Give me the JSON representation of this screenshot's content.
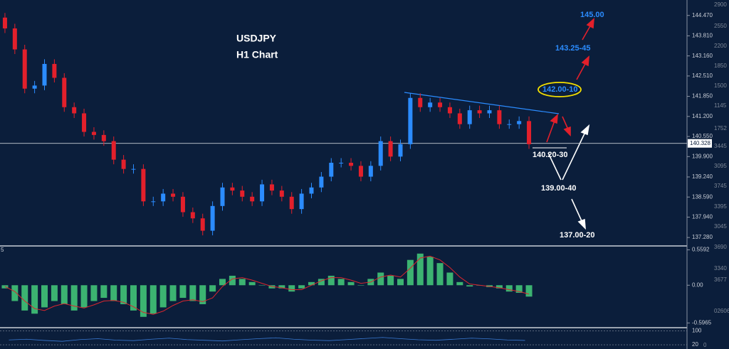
{
  "chart_data": {
    "type": "candlestick",
    "title": "USDJPY",
    "subtitle": "H1 Chart",
    "ylim": [
      137.03,
      144.97
    ],
    "yticks": [
      {
        "value": 144.47,
        "label": "144.470"
      },
      {
        "value": 143.81,
        "label": "143.810"
      },
      {
        "value": 143.16,
        "label": "143.160"
      },
      {
        "value": 142.51,
        "label": "142.510"
      },
      {
        "value": 141.85,
        "label": "141.850"
      },
      {
        "value": 141.2,
        "label": "141.200"
      },
      {
        "value": 140.55,
        "label": "140.550"
      },
      {
        "value": 139.9,
        "label": "139.900"
      },
      {
        "value": 139.24,
        "label": "139.240"
      },
      {
        "value": 138.59,
        "label": "138.590"
      },
      {
        "value": 137.94,
        "label": "137.940"
      },
      {
        "value": 137.28,
        "label": "137.280"
      }
    ],
    "current_price": {
      "value": 140.328,
      "label": "140.328"
    },
    "up_color": "#2b8cff",
    "down_color": "#e3202b",
    "open": [
      144.4,
      144.05,
      143.37,
      142.1,
      142.2,
      142.9,
      142.45,
      141.5,
      141.3,
      140.7,
      140.6,
      140.4,
      139.8,
      139.5,
      139.5,
      138.45,
      138.45,
      138.7,
      138.6,
      138.1,
      137.9,
      137.5,
      138.3,
      138.9,
      138.8,
      138.6,
      138.45,
      139.0,
      138.8,
      138.6,
      138.2,
      138.7,
      138.9,
      139.25,
      139.7,
      139.7,
      139.6,
      139.25,
      139.6,
      140.4,
      139.9,
      140.3,
      141.8,
      141.5,
      141.65,
      141.5,
      141.3,
      140.95,
      141.4,
      141.3,
      141.4,
      140.95,
      140.95,
      141.05
    ],
    "high": [
      144.55,
      144.2,
      143.52,
      142.35,
      143.05,
      143.05,
      142.6,
      141.65,
      141.45,
      140.85,
      140.75,
      140.55,
      139.95,
      139.65,
      139.65,
      138.6,
      138.85,
      138.85,
      138.75,
      138.25,
      138.05,
      138.45,
      139.05,
      139.05,
      138.95,
      138.75,
      139.15,
      139.15,
      138.95,
      138.75,
      138.85,
      139.05,
      139.4,
      139.85,
      139.85,
      139.85,
      139.75,
      139.75,
      140.55,
      140.55,
      140.45,
      141.95,
      141.95,
      141.8,
      141.8,
      141.65,
      141.45,
      141.55,
      141.55,
      141.55,
      141.55,
      141.1,
      141.2,
      141.2
    ],
    "low": [
      143.9,
      143.22,
      141.95,
      141.95,
      142.05,
      142.3,
      141.35,
      141.15,
      140.55,
      140.45,
      140.25,
      139.65,
      139.35,
      139.35,
      138.3,
      138.3,
      138.3,
      138.45,
      137.95,
      137.75,
      137.35,
      137.35,
      138.15,
      138.65,
      138.45,
      138.3,
      138.3,
      138.65,
      138.45,
      138.05,
      138.05,
      138.55,
      138.75,
      139.1,
      139.55,
      139.45,
      139.1,
      139.1,
      139.45,
      139.75,
      139.75,
      140.15,
      141.35,
      141.35,
      141.35,
      141.15,
      140.8,
      140.8,
      141.15,
      141.15,
      140.8,
      140.8,
      140.8,
      140.15
    ],
    "close": [
      144.05,
      143.37,
      142.1,
      142.2,
      142.9,
      142.45,
      141.5,
      141.3,
      140.7,
      140.6,
      140.4,
      139.8,
      139.5,
      139.5,
      138.45,
      138.45,
      138.7,
      138.6,
      138.1,
      137.9,
      137.5,
      138.3,
      138.9,
      138.8,
      138.6,
      138.45,
      139.0,
      138.8,
      138.6,
      138.2,
      138.7,
      138.9,
      139.25,
      139.7,
      139.7,
      139.6,
      139.25,
      139.6,
      140.4,
      139.9,
      140.3,
      141.8,
      141.5,
      141.65,
      141.5,
      141.3,
      140.95,
      141.4,
      141.3,
      141.4,
      140.95,
      140.95,
      141.05,
      140.3
    ],
    "annotations": [
      "145.00",
      "143.25-45",
      "142.00-10",
      "140.20-30",
      "139.00-40",
      "137.00-20"
    ],
    "right_axis_overlay": [
      "2900",
      "2550",
      "2200",
      "1850",
      "1500",
      "1145",
      "1752",
      "3445",
      "3095",
      "3745",
      "3395",
      "3045",
      "3690"
    ],
    "macd": {
      "label": "5",
      "ylim": [
        -0.66,
        0.61
      ],
      "yticks": [
        0.5592,
        {
          "value": 0,
          "label": "0.00"
        },
        -0.5965
      ],
      "overlay": [
        "3340",
        "3677",
        "02606"
      ],
      "histogram_color": "#3cb371",
      "signal_color": "#d9262e",
      "histogram": [
        -0.05,
        -0.25,
        -0.4,
        -0.45,
        -0.35,
        -0.25,
        -0.3,
        -0.4,
        -0.35,
        -0.25,
        -0.2,
        -0.25,
        -0.3,
        -0.4,
        -0.5,
        -0.45,
        -0.35,
        -0.25,
        -0.2,
        -0.25,
        -0.3,
        -0.1,
        0.1,
        0.15,
        0.1,
        0.05,
        0.0,
        -0.05,
        -0.05,
        -0.1,
        -0.05,
        0.05,
        0.1,
        0.15,
        0.1,
        0.05,
        0.0,
        0.1,
        0.2,
        0.15,
        0.1,
        0.4,
        0.5,
        0.45,
        0.35,
        0.2,
        0.05,
        -0.02,
        0.0,
        -0.03,
        -0.05,
        -0.1,
        -0.12,
        -0.18
      ],
      "signal": [
        -0.02,
        -0.1,
        -0.25,
        -0.37,
        -0.4,
        -0.33,
        -0.29,
        -0.33,
        -0.36,
        -0.31,
        -0.25,
        -0.24,
        -0.27,
        -0.34,
        -0.43,
        -0.46,
        -0.41,
        -0.32,
        -0.25,
        -0.23,
        -0.26,
        -0.2,
        -0.02,
        0.1,
        0.12,
        0.08,
        0.03,
        -0.02,
        -0.04,
        -0.07,
        -0.07,
        0.0,
        0.07,
        0.12,
        0.12,
        0.08,
        0.03,
        0.05,
        0.13,
        0.16,
        0.13,
        0.27,
        0.43,
        0.46,
        0.4,
        0.28,
        0.13,
        0.02,
        0.0,
        -0.02,
        -0.04,
        -0.07,
        -0.1,
        -0.14
      ]
    },
    "oscillator": {
      "ylim": [
        0,
        110
      ],
      "yticks": [
        100,
        20
      ],
      "overlay": "0",
      "color": "#3a7bd5",
      "values": [
        48,
        52,
        45,
        40,
        50,
        55,
        47,
        44,
        52,
        58,
        50,
        46,
        42,
        49,
        55,
        60,
        52,
        47,
        44,
        50,
        56,
        62,
        55,
        49,
        46,
        52,
        58,
        54,
        48,
        45
      ]
    }
  }
}
